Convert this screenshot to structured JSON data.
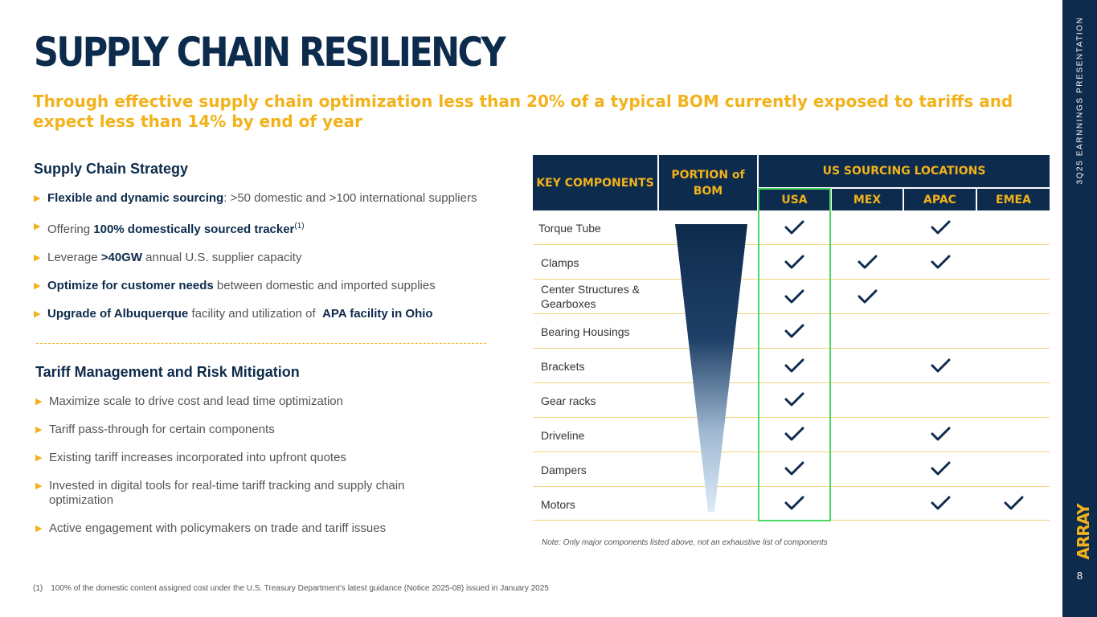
{
  "header": {
    "title": "SUPPLY CHAIN RESILIENCY",
    "subtitle": "Through effective supply chain optimization less than 20% of a typical BOM currently exposed to tariffs and expect less than 14% by end of year"
  },
  "strategy": {
    "heading": "Supply Chain Strategy",
    "bullets": [
      {
        "b": "Flexible and dynamic sourcing",
        "t": ": >50 domestic and >100 international suppliers"
      },
      {
        "t0": "Offering ",
        "b": "100% domestically sourced tracker",
        "sup": "(1)"
      },
      {
        "t0": "Leverage ",
        "b": ">40GW",
        "t": " annual U.S. supplier capacity"
      },
      {
        "b": "Optimize for customer needs",
        "t": " between domestic and imported supplies"
      },
      {
        "b": "Upgrade of Albuquerque",
        "t": " facility and utilization of  ",
        "b2": "APA facility in Ohio"
      }
    ]
  },
  "tariff": {
    "heading": "Tariff Management and Risk Mitigation",
    "bullets": [
      "Maximize scale to drive cost and lead time optimization",
      "Tariff pass-through for certain components",
      "Existing tariff increases incorporated into upfront quotes",
      "Invested in digital tools for real-time tariff tracking and supply chain optimization",
      "Active engagement with policymakers on trade and tariff issues"
    ]
  },
  "table": {
    "col_key": "KEY COMPONENTS",
    "col_portion": "PORTION of BOM",
    "col_sourcing": "US SOURCING LOCATIONS",
    "regions": [
      "USA",
      "MEX",
      "APAC",
      "EMEA"
    ],
    "rows": [
      {
        "label": "Torque Tube",
        "checks": [
          true,
          false,
          true,
          false
        ]
      },
      {
        "label": "Clamps",
        "checks": [
          true,
          true,
          true,
          false
        ]
      },
      {
        "label": "Center Structures & Gearboxes",
        "checks": [
          true,
          true,
          false,
          false
        ]
      },
      {
        "label": "Bearing Housings",
        "checks": [
          true,
          false,
          false,
          false
        ]
      },
      {
        "label": "Brackets",
        "checks": [
          true,
          false,
          true,
          false
        ]
      },
      {
        "label": "Gear racks",
        "checks": [
          true,
          false,
          false,
          false
        ]
      },
      {
        "label": "Driveline",
        "checks": [
          true,
          false,
          true,
          false
        ]
      },
      {
        "label": "Dampers",
        "checks": [
          true,
          false,
          true,
          false
        ]
      },
      {
        "label": "Motors",
        "checks": [
          true,
          false,
          true,
          true
        ]
      }
    ],
    "note": "Note: Only major components listed above, not an exhaustive list of components"
  },
  "footnote": {
    "num": "(1)",
    "text": "100% of the domestic content assigned cost under the U.S. Treasury Department’s latest guidance (Notice 2025-08) issued in January 2025"
  },
  "sidebar": {
    "presentation": "3Q25 EARNNINGS PRESENTATION",
    "logo": "ARRAY",
    "page": "8"
  },
  "colors": {
    "navy": "#0d2b4c",
    "gold": "#f2b21b",
    "highlight": "#4cd964"
  }
}
